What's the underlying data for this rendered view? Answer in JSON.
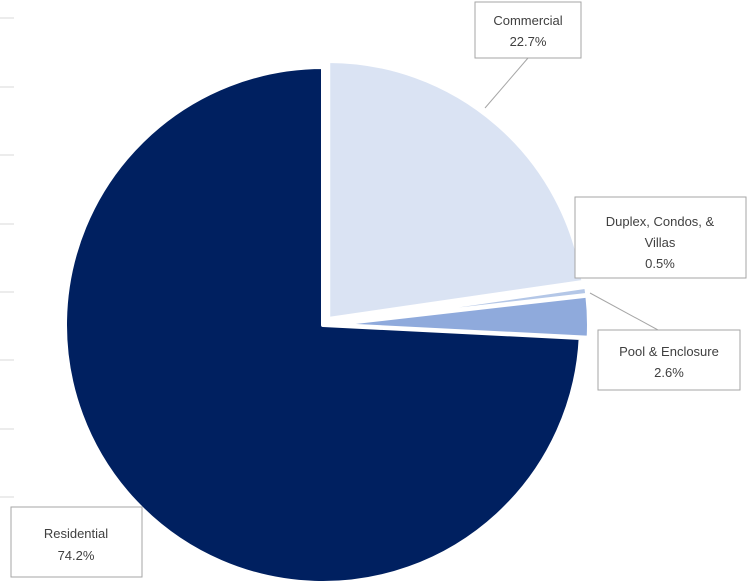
{
  "chart_data": {
    "type": "pie",
    "title": "",
    "start_angle_deg": 0,
    "direction": "clockwise",
    "slices": [
      {
        "label": "Commercial",
        "value": 22.7,
        "display": "22.7%",
        "color": "#dae3f3",
        "exploded": true
      },
      {
        "label": "Duplex, Condos, & Villas",
        "value": 0.5,
        "display": "0.5%",
        "color": "#b4c7e7",
        "exploded": true
      },
      {
        "label": "Pool & Enclosure",
        "value": 2.6,
        "display": "2.6%",
        "color": "#8faadc",
        "exploded": true
      },
      {
        "label": "Residential",
        "value": 74.2,
        "display": "74.2%",
        "color": "#002060",
        "exploded": false
      }
    ],
    "labels": {
      "commercial": {
        "name": "Commercial",
        "pct": "22.7%"
      },
      "duplex": {
        "name_line1": "Duplex, Condos, &",
        "name_line2": "Villas",
        "pct": "0.5%"
      },
      "pool": {
        "name": "Pool & Enclosure",
        "pct": "2.6%"
      },
      "residential": {
        "name": "Residential",
        "pct": "74.2%"
      }
    }
  }
}
